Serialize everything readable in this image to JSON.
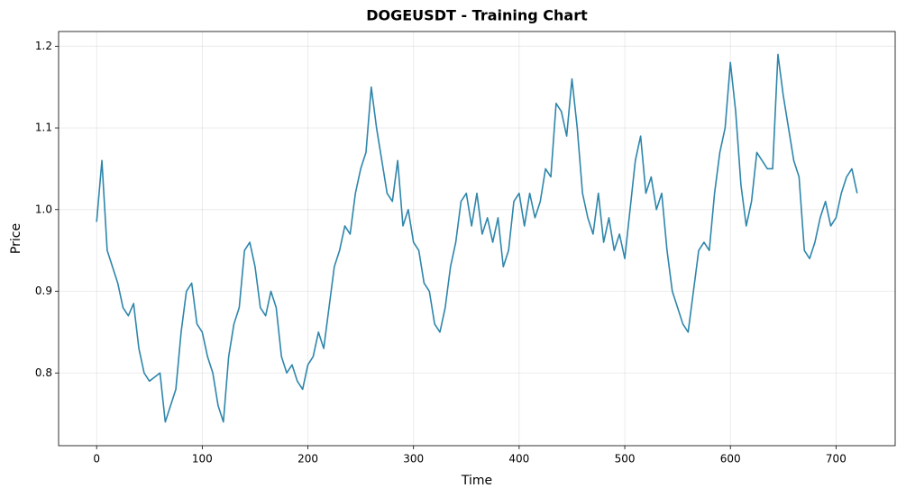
{
  "chart_data": {
    "type": "line",
    "title": "DOGEUSDT - Training Chart",
    "x_label": "Time",
    "y_label": "Price",
    "color": "#2e86ab",
    "grid": true,
    "xlim": [
      -36,
      756
    ],
    "ylim": [
      0.711,
      1.218
    ],
    "xticks": [
      0,
      100,
      200,
      300,
      400,
      500,
      600,
      700
    ],
    "yticks": [
      0.8,
      0.9,
      {
        "value": 1,
        "label": "1.0"
      },
      1.1,
      1.2
    ],
    "x": [
      0,
      5,
      10,
      15,
      20,
      25,
      30,
      35,
      40,
      45,
      50,
      55,
      60,
      65,
      70,
      75,
      80,
      85,
      90,
      95,
      100,
      105,
      110,
      115,
      120,
      125,
      130,
      135,
      140,
      145,
      150,
      155,
      160,
      165,
      170,
      175,
      180,
      185,
      190,
      195,
      200,
      205,
      210,
      215,
      220,
      225,
      230,
      235,
      240,
      245,
      250,
      255,
      260,
      265,
      270,
      275,
      280,
      285,
      290,
      295,
      300,
      305,
      310,
      315,
      320,
      325,
      330,
      335,
      340,
      345,
      350,
      355,
      360,
      365,
      370,
      375,
      380,
      385,
      390,
      395,
      400,
      405,
      410,
      415,
      420,
      425,
      430,
      435,
      440,
      445,
      450,
      455,
      460,
      465,
      470,
      475,
      480,
      485,
      490,
      495,
      500,
      505,
      510,
      515,
      520,
      525,
      530,
      535,
      540,
      545,
      550,
      555,
      560,
      565,
      570,
      575,
      580,
      585,
      590,
      595,
      600,
      605,
      610,
      615,
      620,
      625,
      630,
      635,
      640,
      645,
      650,
      655,
      660,
      665,
      670,
      675,
      680,
      685,
      690,
      695,
      700,
      705,
      710,
      715,
      720
    ],
    "values": [
      0.985,
      1.06,
      0.95,
      0.93,
      0.91,
      0.88,
      0.87,
      0.885,
      0.83,
      0.8,
      0.79,
      0.795,
      0.8,
      0.74,
      0.76,
      0.78,
      0.85,
      0.9,
      0.91,
      0.86,
      0.85,
      0.82,
      0.8,
      0.76,
      0.74,
      0.82,
      0.86,
      0.88,
      0.95,
      0.96,
      0.93,
      0.88,
      0.87,
      0.9,
      0.88,
      0.82,
      0.8,
      0.81,
      0.79,
      0.78,
      0.81,
      0.82,
      0.85,
      0.83,
      0.88,
      0.93,
      0.95,
      0.98,
      0.97,
      1.02,
      1.05,
      1.07,
      1.15,
      1.1,
      1.06,
      1.02,
      1.01,
      1.06,
      0.98,
      1.0,
      0.96,
      0.95,
      0.91,
      0.9,
      0.86,
      0.85,
      0.88,
      0.93,
      0.96,
      1.01,
      1.02,
      0.98,
      1.02,
      0.97,
      0.99,
      0.96,
      0.99,
      0.93,
      0.95,
      1.01,
      1.02,
      0.98,
      1.02,
      0.99,
      1.01,
      1.05,
      1.04,
      1.13,
      1.12,
      1.09,
      1.16,
      1.1,
      1.02,
      0.99,
      0.97,
      1.02,
      0.96,
      0.99,
      0.95,
      0.97,
      0.94,
      1.0,
      1.06,
      1.09,
      1.02,
      1.04,
      1.0,
      1.02,
      0.95,
      0.9,
      0.88,
      0.86,
      0.85,
      0.9,
      0.95,
      0.96,
      0.95,
      1.02,
      1.07,
      1.1,
      1.18,
      1.12,
      1.03,
      0.98,
      1.01,
      1.07,
      1.06,
      1.05,
      1.05,
      1.19,
      1.14,
      1.1,
      1.06,
      1.04,
      0.95,
      0.94,
      0.96,
      0.99,
      1.01,
      0.98,
      0.99,
      1.02,
      1.04,
      1.05,
      1.02
    ]
  }
}
